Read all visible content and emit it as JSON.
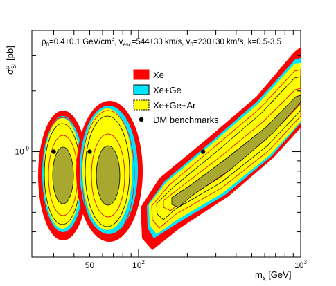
{
  "chart_data": {
    "type": "contour",
    "annotation": "ρ0=0.4±0.1 GeV/cm3, vesc=544±33 km/s, v0=230±30 km/s, k=0.5-3.5",
    "annotation_parts": {
      "rho": "ρ",
      "rho_sub": "0",
      "rho_val": "=0.4±0.1 GeV/cm",
      "rho_sup": "3",
      "vesc": ", v",
      "vesc_sub": "esc",
      "vesc_val": "=544±33 km/s, v",
      "v0_sub": "0",
      "v0_val": "=230±30 km/s, k=0.5-3.5"
    },
    "xlabel": {
      "base": "m",
      "sub": "χ",
      "rest": " [GeV]"
    },
    "ylabel": {
      "base": "σ",
      "sup": "p",
      "sub": "SI",
      "rest": " [pb]"
    },
    "x_scale": "log",
    "y_scale": "log",
    "xlim": [
      22,
      1000
    ],
    "ylim": [
      3e-10,
      4e-09
    ],
    "x_tick_labels": [
      {
        "value": 50,
        "label": "50"
      },
      {
        "value": 100,
        "label": "10",
        "sup": "2"
      },
      {
        "value": 1000,
        "label": "10",
        "sup": "3"
      }
    ],
    "y_tick_labels": [
      {
        "value": 1e-09,
        "label": "10",
        "sup": "-9"
      }
    ],
    "legend": {
      "position": "top-center",
      "entries": [
        {
          "label": "Xe",
          "color": "#ff0000"
        },
        {
          "label": "Xe+Ge",
          "color": "#00e5ff"
        },
        {
          "label": "Xe+Ge+Ar",
          "color": "#ffff00"
        },
        {
          "label": "DM benchmarks",
          "marker": "dot"
        }
      ]
    },
    "benchmarks": [
      {
        "mass": 30,
        "sigma": 1e-09
      },
      {
        "mass": 50,
        "sigma": 1e-09
      },
      {
        "mass": 250,
        "sigma": 1e-09
      }
    ],
    "colors": {
      "xe": "#ff0000",
      "xe_ge": "#00e5ff",
      "xe_ge_ar": "#ffff00",
      "inner_region": "#a8a830",
      "red_contour": "#e02020",
      "black_contour": "#000000"
    }
  }
}
